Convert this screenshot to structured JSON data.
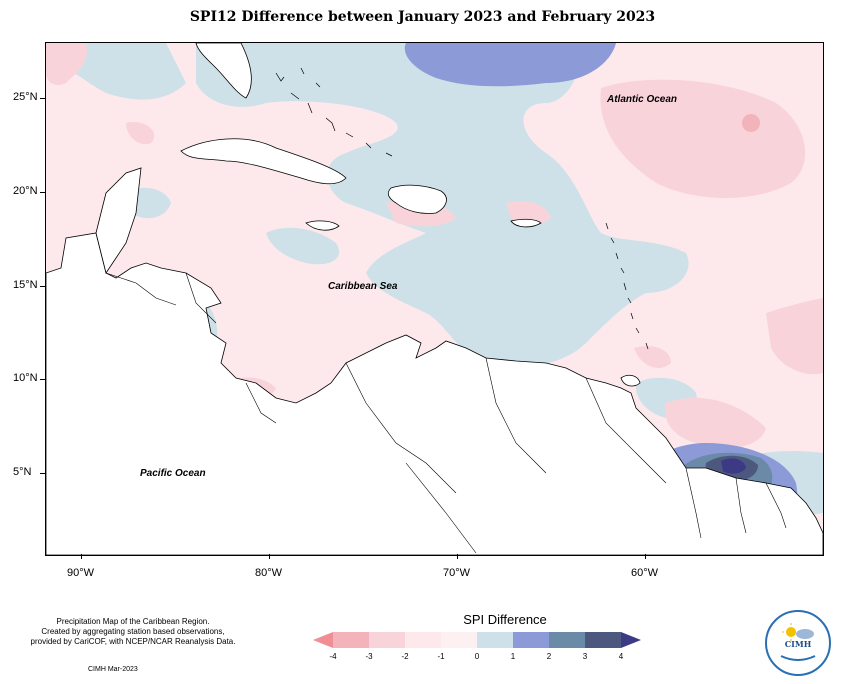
{
  "title": "SPI12 Difference between January 2023 and February 2023",
  "map": {
    "labels": {
      "atlantic": "Atlantic Ocean",
      "caribbean": "Caribbean Sea",
      "pacific": "Pacific Ocean"
    },
    "longitude_ticks": [
      "90°W",
      "80°W",
      "70°W",
      "60°W"
    ],
    "latitude_ticks": [
      "25°N",
      "20°N",
      "15°N",
      "10°N",
      "5°N"
    ]
  },
  "legend": {
    "title": "SPI Difference",
    "ticks": [
      "-4",
      "-3",
      "-2",
      "-1",
      "0",
      "1",
      "2",
      "3",
      "4"
    ],
    "colors": [
      "#f08d95",
      "#f3b3bb",
      "#f9d3da",
      "#fde8ec",
      "#fdf0f2",
      "#cfe1e8",
      "#8c9ad8",
      "#6a8aa8",
      "#4d587e",
      "#3c3a84"
    ]
  },
  "credits": {
    "lines": [
      "Precipitation Map of the Caribbean Region.",
      "Created by aggregating station based observations,",
      "provided by CariCOF, with NCEP/NCAR Reanalysis Data."
    ],
    "note": "CIMH Mar-2023"
  },
  "logo": {
    "text": "CIMH"
  }
}
